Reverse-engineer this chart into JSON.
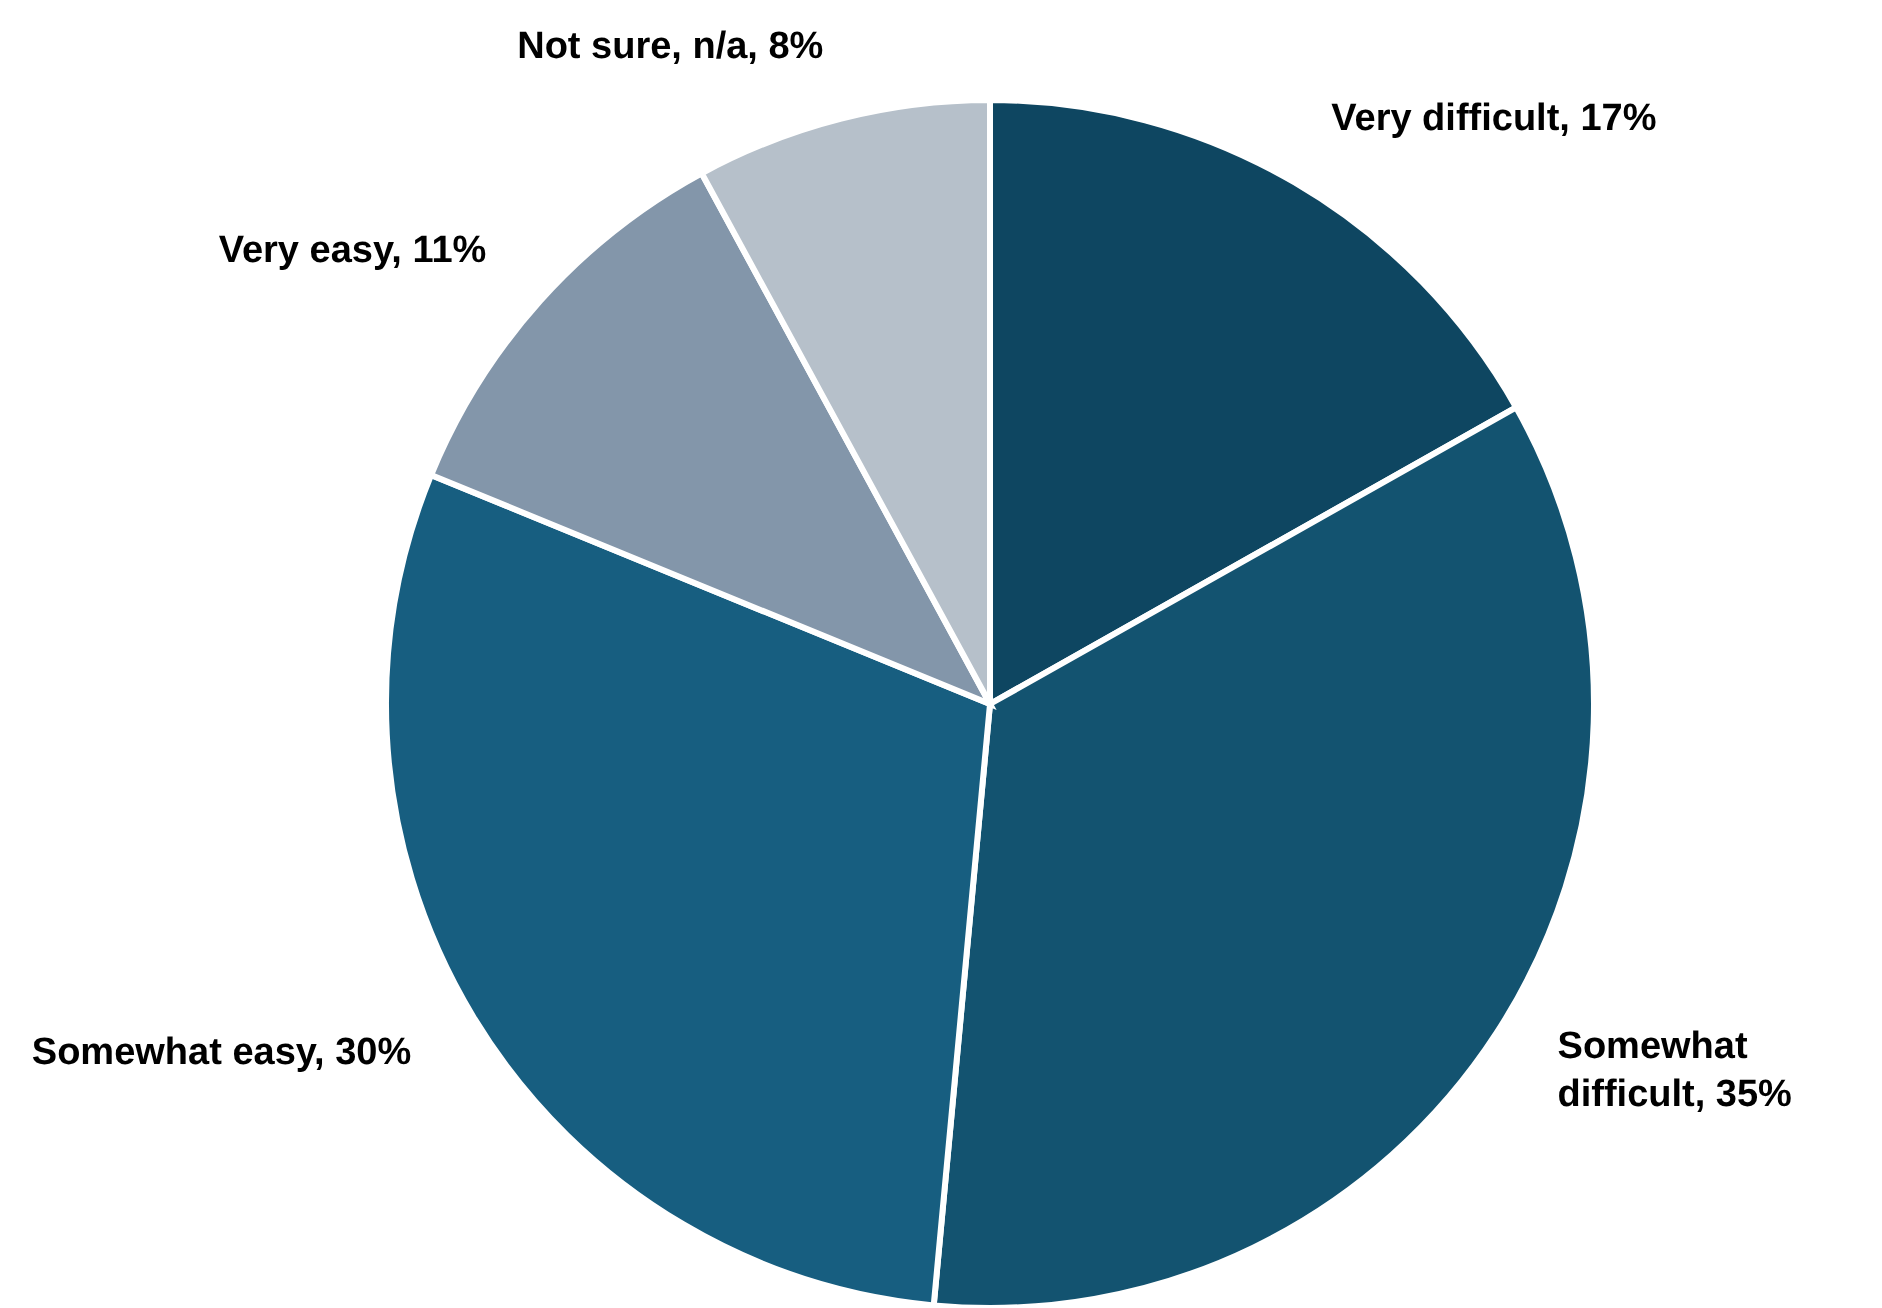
{
  "chart_data": {
    "type": "pie",
    "categories": [
      "Very difficult",
      "Somewhat difficult",
      "Somewhat easy",
      "Very easy",
      "Not sure, n/a"
    ],
    "values": [
      17,
      35,
      30,
      11,
      8
    ],
    "value_labels": [
      "17%",
      "35%",
      "30%",
      "11%",
      "8%"
    ],
    "colors": [
      "#0e4661",
      "#135370",
      "#175e80",
      "#8396aa",
      "#b6c0ca"
    ]
  }
}
